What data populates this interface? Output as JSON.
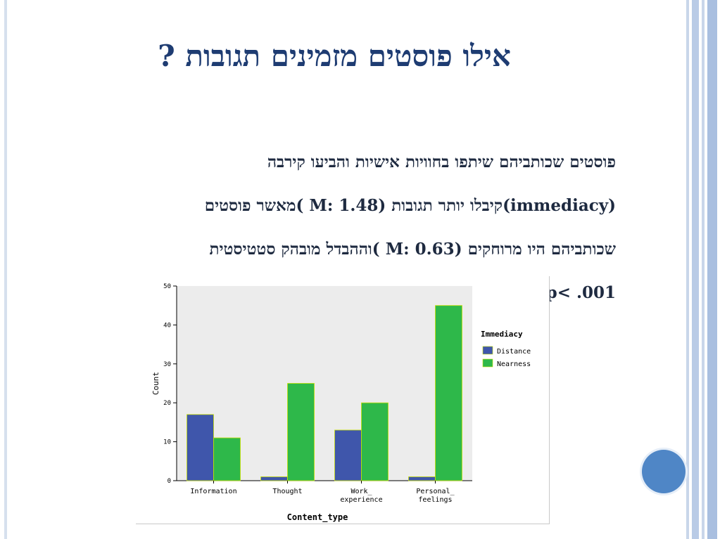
{
  "slide": {
    "title": "אילו פוסטים מזמינים תגובות ?",
    "lines": [
      "פוסטים שכותביהם שיתפו בחוויות אישיות והביעו קירבה",
      "(immediacy)קיבלו יותר תגובות (M: 1.48 )מאשר פוסטים",
      "שכותביהם היו מרוחקים (M: 0.63 )וההבדל מובהק סטטיסטית",
      "p< .001]"
    ]
  },
  "colors": {
    "title": "#1e3c72",
    "distance": "#3f56ab",
    "nearness": "#2eb84a",
    "plot_bg": "#ececec",
    "accent_circle": "#4f86c6"
  },
  "chart_data": {
    "type": "bar",
    "categories": [
      "Information",
      "Thought",
      "Work_\nexperience",
      "Personal_\nfeelings"
    ],
    "series": [
      {
        "name": "Distance",
        "values": [
          17,
          1,
          13,
          1
        ]
      },
      {
        "name": "Nearness",
        "values": [
          11,
          25,
          20,
          45
        ]
      }
    ],
    "xlabel": "Content_type",
    "ylabel": "Count",
    "ylim": [
      0,
      50
    ],
    "yticks": [
      0,
      10,
      20,
      30,
      40,
      50
    ],
    "legend_title": "Immediacy",
    "legend_position": "right",
    "grid": false
  }
}
